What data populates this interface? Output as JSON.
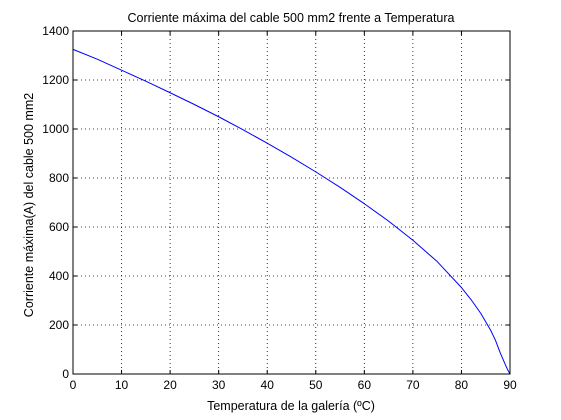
{
  "chart_data": {
    "type": "line",
    "title": "Corriente máxima del cable 500 mm2 frente a Temperatura",
    "xlabel": "Temperatura de la galería (ºC)",
    "ylabel": "Corriente máxima(A) del cable 500 mm2",
    "xlim": [
      0,
      90
    ],
    "ylim": [
      0,
      1400
    ],
    "xticks": [
      0,
      10,
      20,
      30,
      40,
      50,
      60,
      70,
      80,
      90
    ],
    "yticks": [
      0,
      200,
      400,
      600,
      800,
      1000,
      1200,
      1400
    ],
    "grid": "dotted",
    "legend": "none",
    "series": [
      {
        "color": "#0000ff",
        "x": [
          0,
          5,
          10,
          15,
          20,
          25,
          30,
          35,
          40,
          45,
          50,
          55,
          60,
          65,
          70,
          75,
          80,
          82,
          84,
          86,
          87,
          88,
          89,
          89.5,
          90
        ],
        "y": [
          1325,
          1285,
          1240,
          1195,
          1148,
          1100,
          1050,
          997,
          942,
          885,
          825,
          762,
          695,
          624,
          546,
          459,
          353,
          303,
          247,
          179,
          138,
          86,
          40,
          18,
          0
        ]
      }
    ]
  }
}
